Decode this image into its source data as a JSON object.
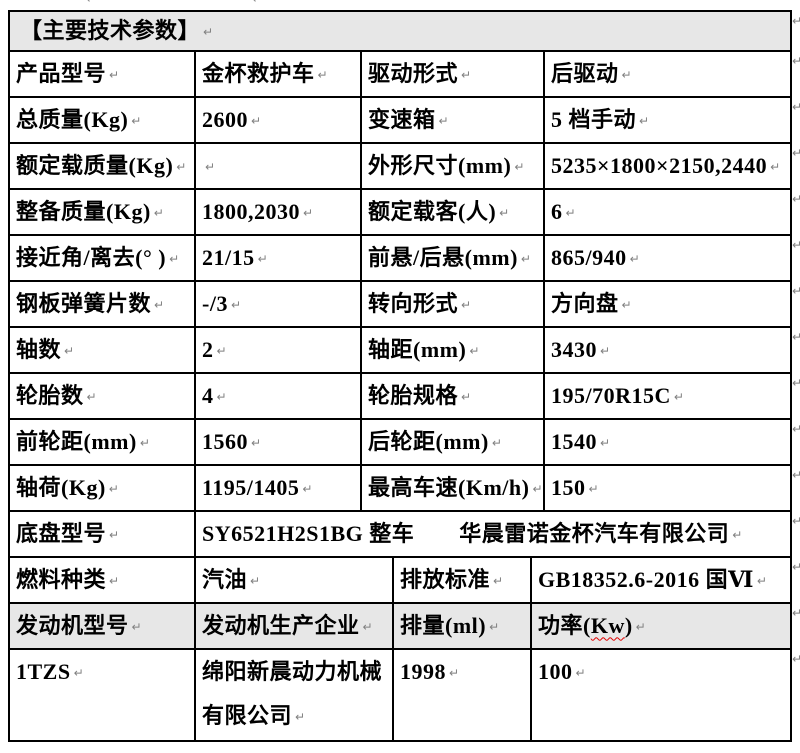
{
  "section_title": "【主要技术参数】",
  "pilcrow": "↵",
  "colors": {
    "header_bg": "#e7e7e7",
    "border": "#000000",
    "text": "#000000",
    "pilcrow_gray": "#808080",
    "spellcheck_red": "#e00000"
  },
  "table_main": {
    "rows": [
      {
        "cells": [
          {
            "t": "产品型号"
          },
          {
            "t": "金杯救护车"
          },
          {
            "t": "驱动形式"
          },
          {
            "t": "后驱动"
          }
        ]
      },
      {
        "cells": [
          {
            "t": "总质量(Kg)"
          },
          {
            "t": "2600"
          },
          {
            "t": "变速箱"
          },
          {
            "t": "5 档手动"
          }
        ]
      },
      {
        "cells": [
          {
            "t": "额定载质量(Kg)"
          },
          {
            "t": ""
          },
          {
            "t": "外形尺寸(mm)"
          },
          {
            "t": "5235×1800×2150,2440"
          }
        ]
      },
      {
        "cells": [
          {
            "t": "整备质量(Kg)"
          },
          {
            "t": "1800,2030"
          },
          {
            "t": "额定载客(人)"
          },
          {
            "t": "6"
          }
        ]
      },
      {
        "cells": [
          {
            "t": "接近角/离去(° )"
          },
          {
            "t": "21/15"
          },
          {
            "t": "前悬/后悬(mm)"
          },
          {
            "t": "865/940"
          }
        ]
      },
      {
        "cells": [
          {
            "t": "钢板弹簧片数"
          },
          {
            "t": "-/3"
          },
          {
            "t": "转向形式"
          },
          {
            "t": "方向盘"
          }
        ]
      },
      {
        "cells": [
          {
            "t": "轴数"
          },
          {
            "t": "2"
          },
          {
            "t": "轴距(mm)"
          },
          {
            "t": "3430"
          }
        ]
      },
      {
        "cells": [
          {
            "t": "轮胎数"
          },
          {
            "t": "4"
          },
          {
            "t": "轮胎规格"
          },
          {
            "t": "195/70R15C"
          }
        ]
      },
      {
        "cells": [
          {
            "t": "前轮距(mm)"
          },
          {
            "t": "1560"
          },
          {
            "t": "后轮距(mm)"
          },
          {
            "t": "1540"
          }
        ]
      },
      {
        "cells": [
          {
            "t": "轴荷(Kg)"
          },
          {
            "t": "1195/1405"
          },
          {
            "t": "最高车速(Km/h)"
          },
          {
            "t": "150"
          }
        ]
      },
      {
        "cells": [
          {
            "t": "底盘型号"
          },
          {
            "t": "SY6521H2S1BG 整车　　华晨雷诺金杯汽车有限公司",
            "colspan": 3
          }
        ]
      }
    ]
  },
  "table_engine": {
    "rows": [
      {
        "cells": [
          {
            "t": "燃料种类"
          },
          {
            "t": "汽油"
          },
          {
            "t": "排放标准"
          },
          {
            "t": "GB18352.6-2016 国Ⅵ"
          }
        ]
      },
      {
        "gray": true,
        "cells": [
          {
            "t": "发动机型号"
          },
          {
            "t": "发动机生产企业"
          },
          {
            "t": "排量(ml)"
          },
          {
            "t": "功率(Kw)",
            "squiggle": "Kw"
          }
        ]
      },
      {
        "tall": true,
        "cells": [
          {
            "t": "1TZS"
          },
          {
            "t": "绵阳新晨动力机械有限公司"
          },
          {
            "t": "1998"
          },
          {
            "t": "100"
          }
        ]
      }
    ]
  }
}
